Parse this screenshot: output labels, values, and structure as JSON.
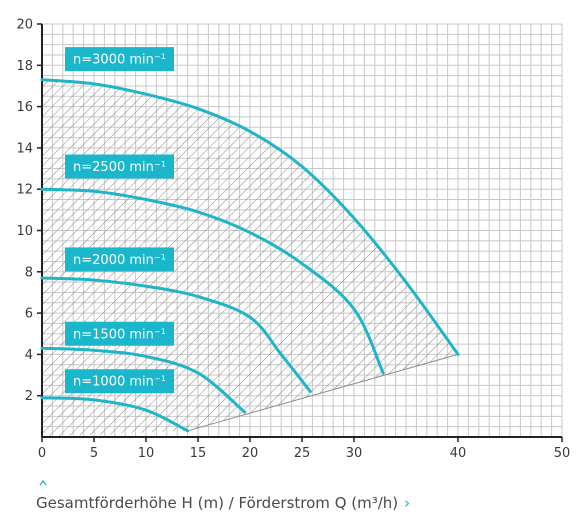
{
  "caption": {
    "text": "Gesamtförderhöhe H (m) / Förderstrom Q (m³/h)",
    "right_chevron_icon": "chevron-right-icon",
    "up_caret_icon": "caret-up-icon"
  },
  "colors": {
    "curve": "#1fb5c9",
    "label_bg": "#19b6cc",
    "grid": "#c8c8c8",
    "axis": "#222222",
    "hatch": "#8a8a8a"
  },
  "chart_data": {
    "type": "line",
    "title": "",
    "xlabel": "",
    "ylabel": "",
    "xlim": [
      0,
      50
    ],
    "ylim": [
      0,
      20
    ],
    "x_ticks": [
      0,
      5,
      10,
      15,
      20,
      25,
      30,
      40,
      50
    ],
    "y_ticks": [
      2,
      4,
      6,
      8,
      10,
      12,
      14,
      16,
      18,
      20
    ],
    "grid": true,
    "series": [
      {
        "name": "n=3000 min⁻¹",
        "label_y": 18.3,
        "points": [
          [
            0,
            17.3
          ],
          [
            5,
            17.1
          ],
          [
            10,
            16.6
          ],
          [
            15,
            15.9
          ],
          [
            20,
            14.8
          ],
          [
            25,
            13.1
          ],
          [
            30,
            10.6
          ],
          [
            35,
            7.5
          ],
          [
            40,
            4.0
          ]
        ]
      },
      {
        "name": "n=2500 min⁻¹",
        "label_y": 13.1,
        "points": [
          [
            0,
            12.0
          ],
          [
            5,
            11.9
          ],
          [
            10,
            11.5
          ],
          [
            15,
            10.9
          ],
          [
            20,
            9.9
          ],
          [
            25,
            8.4
          ],
          [
            30,
            6.2
          ],
          [
            32.8,
            3.1
          ]
        ]
      },
      {
        "name": "n=2000 min⁻¹",
        "label_y": 8.6,
        "points": [
          [
            0,
            7.7
          ],
          [
            5,
            7.6
          ],
          [
            10,
            7.3
          ],
          [
            15,
            6.8
          ],
          [
            20,
            5.8
          ],
          [
            23,
            4.0
          ],
          [
            25.8,
            2.2
          ]
        ]
      },
      {
        "name": "n=1500 min⁻¹",
        "label_y": 5.0,
        "points": [
          [
            0,
            4.3
          ],
          [
            5,
            4.2
          ],
          [
            10,
            3.9
          ],
          [
            15,
            3.1
          ],
          [
            19.5,
            1.2
          ]
        ]
      },
      {
        "name": "n=1000 min⁻¹",
        "label_y": 2.7,
        "points": [
          [
            0,
            1.9
          ],
          [
            5,
            1.8
          ],
          [
            10,
            1.3
          ],
          [
            14,
            0.3
          ]
        ]
      }
    ],
    "operating_region": {
      "outer_series": "n=3000 min⁻¹",
      "lower_boundary": [
        [
          0,
          0
        ],
        [
          14,
          0.3
        ],
        [
          40,
          4.0
        ]
      ]
    }
  }
}
